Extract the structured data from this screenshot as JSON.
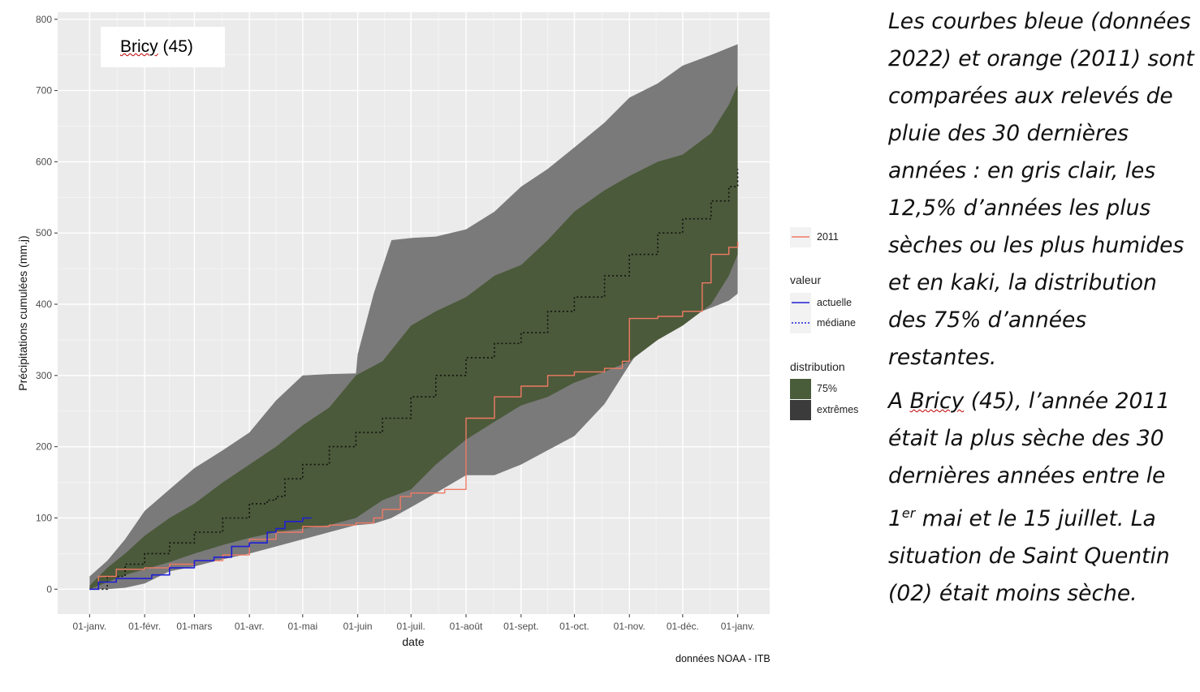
{
  "chart_data": {
    "type": "area",
    "ylabel": "Précipitations cumulées (mm.j)",
    "xlabel": "date",
    "ylim": [
      0,
      800
    ],
    "y_ticks": [
      0,
      100,
      200,
      300,
      400,
      500,
      600,
      700,
      800
    ],
    "x_ticks": [
      "01-janv.",
      "01-févr.",
      "01-mars",
      "01-avr.",
      "01-mai",
      "01-juin",
      "01-juil.",
      "01-août",
      "01-sept.",
      "01-oct.",
      "01-nov.",
      "01-déc.",
      "01-janv."
    ],
    "x_tick_days": [
      0,
      31,
      59,
      90,
      120,
      151,
      181,
      212,
      243,
      273,
      304,
      334,
      365
    ],
    "xlim_days": [
      -18,
      383
    ],
    "grid": true,
    "legend_position": "right",
    "annotation": "Bricy (45)",
    "credit": "données NOAA - ITB",
    "colors": {
      "panel": "#ebebeb",
      "extremes": "#7a7a7a",
      "band75": "#4b5a3a",
      "actuelle": "#1f1fd6",
      "mediane": "#111111",
      "y2011": "#f07a64",
      "legend_key_75": "#4a5d3a",
      "legend_key_extremes": "#3b3b3b"
    },
    "series": [
      {
        "name": "extrêmes",
        "kind": "band",
        "x": [
          0,
          10,
          20,
          31,
          45,
          59,
          75,
          90,
          105,
          120,
          135,
          150,
          151,
          160,
          170,
          181,
          195,
          212,
          228,
          243,
          258,
          273,
          290,
          304,
          320,
          334,
          350,
          360,
          365
        ],
        "low": [
          0,
          0,
          2,
          8,
          25,
          32,
          42,
          50,
          60,
          70,
          80,
          90,
          90,
          92,
          100,
          115,
          135,
          160,
          160,
          175,
          195,
          215,
          260,
          315,
          375,
          380,
          395,
          405,
          415
        ],
        "high": [
          18,
          40,
          70,
          110,
          140,
          170,
          195,
          220,
          265,
          300,
          302,
          303,
          330,
          415,
          490,
          493,
          495,
          505,
          530,
          565,
          590,
          620,
          655,
          690,
          710,
          735,
          750,
          760,
          765
        ]
      },
      {
        "name": "75%",
        "kind": "band",
        "x": [
          0,
          10,
          20,
          31,
          45,
          59,
          75,
          90,
          105,
          120,
          135,
          150,
          165,
          181,
          195,
          212,
          228,
          243,
          258,
          273,
          290,
          304,
          320,
          334,
          350,
          360,
          365
        ],
        "low": [
          0,
          10,
          20,
          28,
          38,
          50,
          62,
          72,
          80,
          85,
          90,
          100,
          125,
          140,
          175,
          210,
          235,
          258,
          270,
          290,
          305,
          320,
          350,
          370,
          400,
          440,
          470
        ],
        "high": [
          5,
          30,
          50,
          75,
          100,
          120,
          150,
          175,
          200,
          230,
          255,
          300,
          320,
          370,
          390,
          410,
          440,
          455,
          490,
          530,
          560,
          580,
          600,
          610,
          640,
          680,
          708
        ]
      },
      {
        "name": "médiane",
        "kind": "line",
        "x": [
          0,
          10,
          20,
          31,
          45,
          59,
          75,
          90,
          100,
          105,
          110,
          120,
          135,
          150,
          165,
          181,
          195,
          212,
          228,
          243,
          258,
          273,
          290,
          304,
          320,
          334,
          350,
          360,
          365
        ],
        "values": [
          0,
          18,
          35,
          50,
          65,
          80,
          100,
          120,
          125,
          130,
          155,
          175,
          200,
          220,
          240,
          270,
          300,
          325,
          345,
          360,
          390,
          410,
          440,
          470,
          500,
          520,
          545,
          565,
          590
        ]
      },
      {
        "name": "2011",
        "kind": "line",
        "x": [
          0,
          5,
          15,
          31,
          45,
          59,
          75,
          90,
          105,
          120,
          135,
          150,
          160,
          165,
          175,
          181,
          190,
          200,
          212,
          228,
          243,
          258,
          273,
          290,
          300,
          304,
          320,
          334,
          345,
          350,
          360,
          365
        ],
        "values": [
          0,
          18,
          28,
          30,
          35,
          40,
          48,
          70,
          80,
          88,
          90,
          93,
          100,
          112,
          130,
          135,
          135,
          140,
          240,
          270,
          285,
          300,
          305,
          310,
          320,
          380,
          383,
          390,
          430,
          470,
          480,
          488
        ]
      },
      {
        "name": "actuelle",
        "kind": "line",
        "x": [
          0,
          5,
          15,
          25,
          35,
          45,
          59,
          70,
          80,
          90,
          100,
          105,
          110,
          120,
          125
        ],
        "values": [
          0,
          10,
          15,
          15,
          20,
          30,
          40,
          45,
          60,
          65,
          80,
          85,
          95,
          100,
          100
        ]
      }
    ]
  },
  "legend": {
    "y2011": "2011",
    "valeur_title": "valeur",
    "actuelle": "actuelle",
    "mediane": "médiane",
    "distribution_title": "distribution",
    "p75": "75%",
    "extremes": "extrêmes"
  },
  "station_label": {
    "name": "Bricy",
    "dept": "(45)"
  },
  "caption": {
    "p1": "Les courbes bleue (données 2022) et orange (2011) sont comparées aux relevés de pluie des 30 dernières années : en gris clair, les 12,5% d’années les plus sèches ou les plus humides et en kaki, la distribution des 75% d’années restantes.",
    "p2_pre": "A ",
    "p2_name": "Bricy",
    "p2_post_a": " (45), l’année 2011 était la plus sèche des 30 dernières années entre le 1",
    "p2_sup": "er",
    "p2_post_b": " mai et le 15 juillet. La situation de Saint Quentin (02) était moins sèche."
  }
}
